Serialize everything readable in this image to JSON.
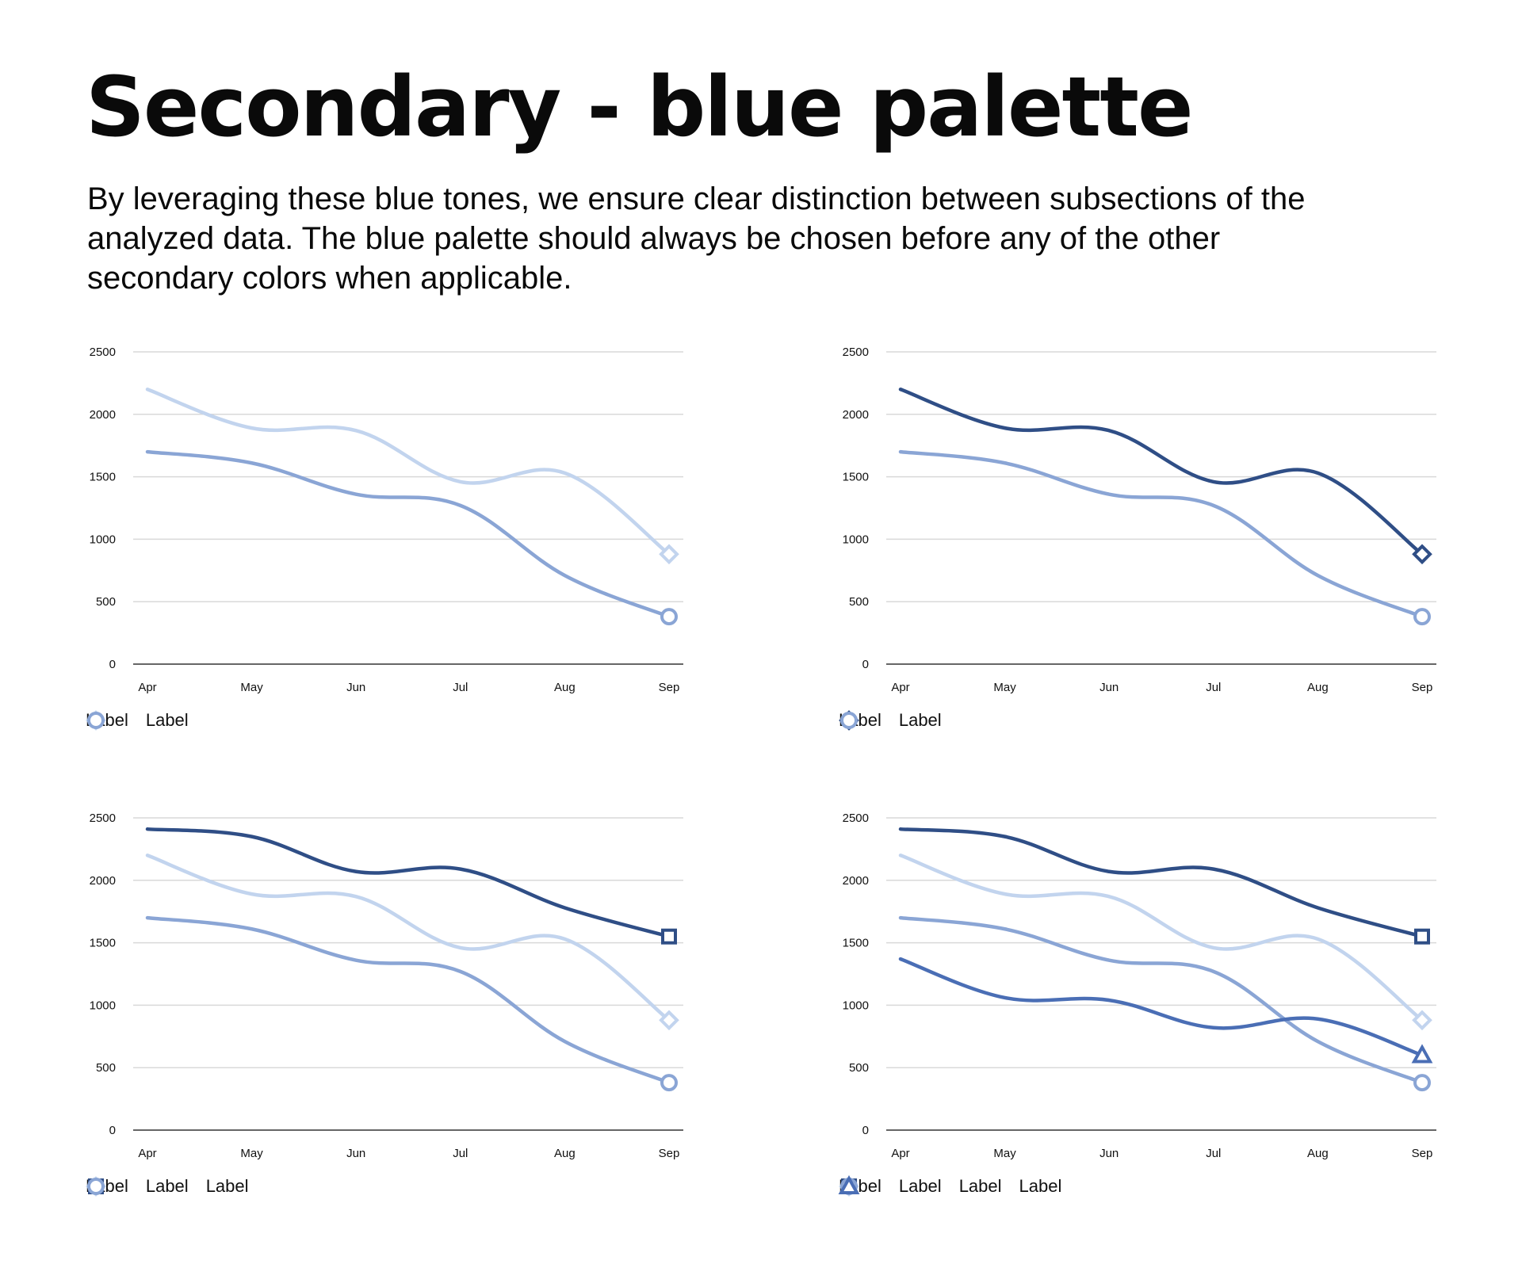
{
  "title": "Secondary - blue palette",
  "description": "By leveraging these blue tones, we ensure clear distinction between subsections of the analyzed data. The blue palette should always be chosen before any of the other secondary colors when applicable.",
  "colors": {
    "dark_blue": "#2f4e86",
    "mid_blue": "#4a6eb5",
    "periwinkle": "#8aa5d5",
    "light_blue": "#c2d4ee",
    "gridline": "#d9d9d9",
    "axis": "#333333"
  },
  "series_defs": {
    "dark": {
      "values": [
        2410,
        2350,
        2070,
        2090,
        1780,
        1550
      ],
      "color": "#2f4e86",
      "marker": "square"
    },
    "light": {
      "values": [
        2200,
        1890,
        1870,
        1460,
        1530,
        880
      ],
      "color": "#c2d4ee",
      "marker": "diamond"
    },
    "peri": {
      "values": [
        1700,
        1610,
        1360,
        1270,
        710,
        380
      ],
      "color": "#8aa5d5",
      "marker": "circle"
    },
    "mid": {
      "values": [
        1370,
        1060,
        1040,
        820,
        890,
        600
      ],
      "color": "#4a6eb5",
      "marker": "triangle"
    }
  },
  "chart_data": [
    {
      "type": "line",
      "title": "",
      "xlabel": "",
      "ylabel": "",
      "categories": [
        "Apr",
        "May",
        "Jun",
        "Jul",
        "Aug",
        "Sep"
      ],
      "y_ticks": [
        0,
        500,
        1000,
        1500,
        2000,
        2500
      ],
      "ylim": [
        0,
        2500
      ],
      "grid": true,
      "legend_position": "bottom-left",
      "series": [
        {
          "name": "Label",
          "values": [
            2200,
            1890,
            1870,
            1460,
            1530,
            880
          ],
          "color": "#c2d4ee",
          "marker": "diamond"
        },
        {
          "name": "Label",
          "values": [
            1700,
            1610,
            1360,
            1270,
            710,
            380
          ],
          "color": "#8aa5d5",
          "marker": "circle"
        }
      ]
    },
    {
      "type": "line",
      "title": "",
      "xlabel": "",
      "ylabel": "",
      "categories": [
        "Apr",
        "May",
        "Jun",
        "Jul",
        "Aug",
        "Sep"
      ],
      "y_ticks": [
        0,
        500,
        1000,
        1500,
        2000,
        2500
      ],
      "ylim": [
        0,
        2500
      ],
      "grid": true,
      "legend_position": "bottom-left",
      "series": [
        {
          "name": "Label",
          "values": [
            2200,
            1890,
            1870,
            1460,
            1530,
            880
          ],
          "color": "#2f4e86",
          "marker": "diamond"
        },
        {
          "name": "Label",
          "values": [
            1700,
            1610,
            1360,
            1270,
            710,
            380
          ],
          "color": "#8aa5d5",
          "marker": "circle"
        }
      ]
    },
    {
      "type": "line",
      "title": "",
      "xlabel": "",
      "ylabel": "",
      "categories": [
        "Apr",
        "May",
        "Jun",
        "Jul",
        "Aug",
        "Sep"
      ],
      "y_ticks": [
        0,
        500,
        1000,
        1500,
        2000,
        2500
      ],
      "ylim": [
        0,
        2500
      ],
      "grid": true,
      "legend_position": "bottom-left",
      "series": [
        {
          "name": "Label",
          "values": [
            2410,
            2350,
            2070,
            2090,
            1780,
            1550
          ],
          "color": "#2f4e86",
          "marker": "square"
        },
        {
          "name": "Label",
          "values": [
            2200,
            1890,
            1870,
            1460,
            1530,
            880
          ],
          "color": "#c2d4ee",
          "marker": "diamond"
        },
        {
          "name": "Label",
          "values": [
            1700,
            1610,
            1360,
            1270,
            710,
            380
          ],
          "color": "#8aa5d5",
          "marker": "circle"
        }
      ]
    },
    {
      "type": "line",
      "title": "",
      "xlabel": "",
      "ylabel": "",
      "categories": [
        "Apr",
        "May",
        "Jun",
        "Jul",
        "Aug",
        "Sep"
      ],
      "y_ticks": [
        0,
        500,
        1000,
        1500,
        2000,
        2500
      ],
      "ylim": [
        0,
        2500
      ],
      "grid": true,
      "legend_position": "bottom-left",
      "series": [
        {
          "name": "Label",
          "values": [
            2410,
            2350,
            2070,
            2090,
            1780,
            1550
          ],
          "color": "#2f4e86",
          "marker": "square"
        },
        {
          "name": "Label",
          "values": [
            2200,
            1890,
            1870,
            1460,
            1530,
            880
          ],
          "color": "#c2d4ee",
          "marker": "diamond"
        },
        {
          "name": "Label",
          "values": [
            1700,
            1610,
            1360,
            1270,
            710,
            380
          ],
          "color": "#8aa5d5",
          "marker": "circle"
        },
        {
          "name": "Label",
          "values": [
            1370,
            1060,
            1040,
            820,
            890,
            600
          ],
          "color": "#4a6eb5",
          "marker": "triangle"
        }
      ]
    }
  ]
}
